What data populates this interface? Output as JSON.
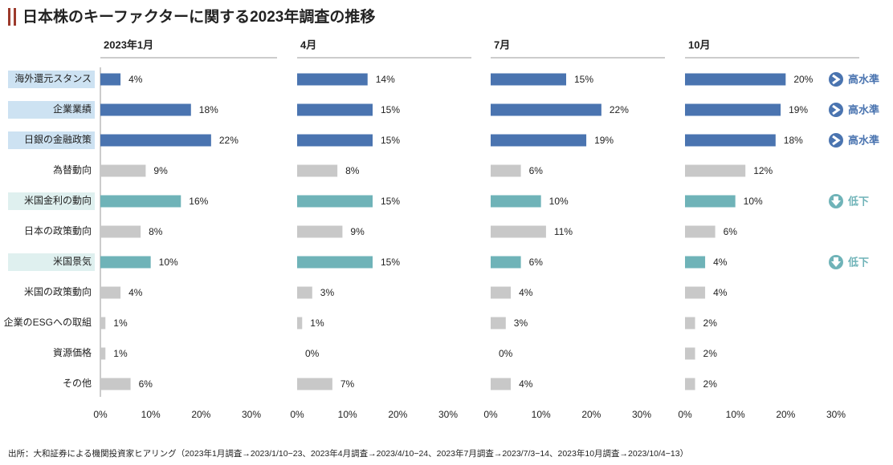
{
  "title": "日本株のキーファクターに関する2023年調査の推移",
  "source": "出所：大和証券による機関投資家ヒアリング（2023年1月調査→2023/1/10−23、2023年4月調査→2023/4/10−24、2023年7月調査→2023/7/3−14、2023年10月調査→2023/10/4−13）",
  "chart_data": {
    "type": "bar",
    "orientation": "horizontal",
    "categories": [
      "海外還元スタンス",
      "企業業績",
      "日銀の金融政策",
      "為替動向",
      "米国金利の動向",
      "日本の政策動向",
      "米国景気",
      "米国の政策動向",
      "企業のESGへの取組",
      "資源価格",
      "その他"
    ],
    "colors": [
      "#4a74b0",
      "#4a74b0",
      "#4a74b0",
      "#c8c8c8",
      "#6fb3b8",
      "#c8c8c8",
      "#6fb3b8",
      "#c8c8c8",
      "#c8c8c8",
      "#c8c8c8",
      "#c8c8c8"
    ],
    "category_backgrounds": [
      "#cde2f2",
      "#cde2f2",
      "#cde2f2",
      null,
      "#dff0ef",
      null,
      "#dff0ef",
      null,
      null,
      null,
      null
    ],
    "annotations": [
      {
        "text": "高水準",
        "color": "#4a74b0",
        "icon": "right"
      },
      {
        "text": "高水準",
        "color": "#4a74b0",
        "icon": "right"
      },
      {
        "text": "高水準",
        "color": "#4a74b0",
        "icon": "right"
      },
      null,
      {
        "text": "低下",
        "color": "#6fb3b8",
        "icon": "down"
      },
      null,
      {
        "text": "低下",
        "color": "#6fb3b8",
        "icon": "down"
      },
      null,
      null,
      null,
      null
    ],
    "xlim": [
      0,
      30
    ],
    "xticks": [
      {
        "value": 0,
        "label": "0%"
      },
      {
        "value": 10,
        "label": "10%"
      },
      {
        "value": 20,
        "label": "20%"
      },
      {
        "value": 30,
        "label": "30%"
      }
    ],
    "series": [
      {
        "name": "2023年1月",
        "values": [
          4,
          18,
          22,
          9,
          16,
          8,
          10,
          4,
          1,
          1,
          6
        ],
        "value_labels": [
          "4%",
          "18%",
          "22%",
          "9%",
          "16%",
          "8%",
          "10%",
          "4%",
          "1%",
          "1%",
          "6%"
        ]
      },
      {
        "name": "4月",
        "values": [
          14,
          15,
          15,
          8,
          15,
          9,
          15,
          3,
          1,
          0,
          7
        ],
        "value_labels": [
          "14%",
          "15%",
          "15%",
          "8%",
          "15%",
          "9%",
          "15%",
          "3%",
          "1%",
          "0%",
          "7%"
        ]
      },
      {
        "name": "7月",
        "values": [
          15,
          22,
          19,
          6,
          10,
          11,
          6,
          4,
          3,
          0,
          4
        ],
        "value_labels": [
          "15%",
          "22%",
          "19%",
          "6%",
          "10%",
          "11%",
          "6%",
          "4%",
          "3%",
          "0%",
          "4%"
        ]
      },
      {
        "name": "10月",
        "values": [
          20,
          19,
          18,
          12,
          10,
          6,
          4,
          4,
          2,
          2,
          2
        ],
        "value_labels": [
          "20%",
          "19%",
          "18%",
          "12%",
          "10%",
          "6%",
          "4%",
          "4%",
          "2%",
          "2%",
          "2%"
        ]
      }
    ]
  }
}
